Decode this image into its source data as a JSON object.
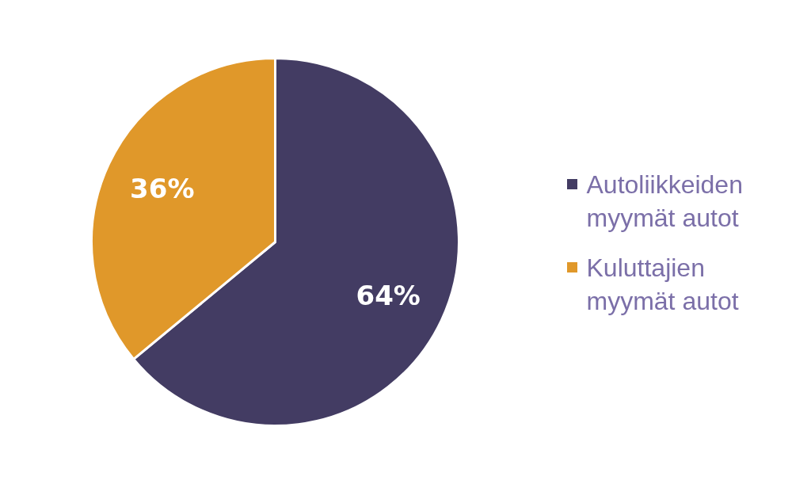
{
  "chart_data": {
    "type": "pie",
    "categories": [
      "Autoliikkeiden myymät autot",
      "Kuluttajien myymät autot"
    ],
    "values": [
      64,
      36
    ],
    "colors": [
      "#433c63",
      "#e0982a"
    ],
    "value_labels": [
      "64%",
      "36%"
    ],
    "legend": "right"
  }
}
